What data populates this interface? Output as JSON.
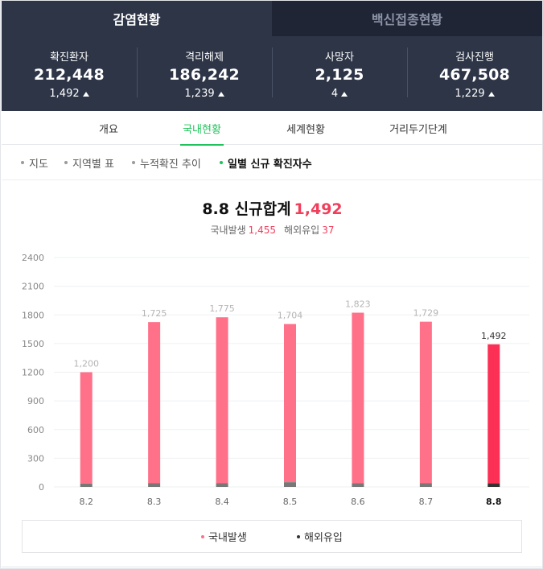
{
  "top_tabs": [
    {
      "label": "감염현황",
      "active": true
    },
    {
      "label": "백신접종현황",
      "active": false
    }
  ],
  "stats": [
    {
      "label": "확진환자",
      "value": "212,448",
      "delta": "1,492"
    },
    {
      "label": "격리해제",
      "value": "186,242",
      "delta": "1,239"
    },
    {
      "label": "사망자",
      "value": "2,125",
      "delta": "4"
    },
    {
      "label": "검사진행",
      "value": "467,508",
      "delta": "1,229"
    }
  ],
  "subnav": [
    {
      "label": "개요"
    },
    {
      "label": "국내현황",
      "active": true
    },
    {
      "label": "세계현황"
    },
    {
      "label": "거리두기단계"
    }
  ],
  "filters": [
    {
      "label": "지도"
    },
    {
      "label": "지역별 표"
    },
    {
      "label": "누적확진 추이"
    },
    {
      "label": "일별 신규 확진자수",
      "active": true
    }
  ],
  "summary": {
    "date": "8.8",
    "title_text": "신규합계",
    "total": "1,492",
    "domestic_label": "국내발생",
    "domestic_value": "1,455",
    "overseas_label": "해외유입",
    "overseas_value": "37"
  },
  "colors": {
    "domestic": "#ff7089",
    "domestic_current": "#fc3054",
    "overseas": "#777777",
    "overseas_current": "#333333",
    "accent_green": "#1ec35a",
    "header_bg": "#2e3547"
  },
  "chart_data": {
    "type": "bar",
    "stacked": true,
    "categories": [
      "8.2",
      "8.3",
      "8.4",
      "8.5",
      "8.6",
      "8.7",
      "8.8"
    ],
    "series": [
      {
        "name": "국내발생",
        "values": [
          1165,
          1687,
          1737,
          1655,
          1784,
          1691,
          1455
        ]
      },
      {
        "name": "해외유입",
        "values": [
          35,
          38,
          38,
          49,
          39,
          38,
          37
        ]
      }
    ],
    "totals": [
      "1,200",
      "1,725",
      "1,775",
      "1,704",
      "1,823",
      "1,729",
      "1,492"
    ],
    "total_values": [
      1200,
      1725,
      1775,
      1704,
      1823,
      1729,
      1492
    ],
    "yticks": [
      "2400",
      "2100",
      "1800",
      "1500",
      "1200",
      "900",
      "600",
      "300",
      "0"
    ],
    "ylim": [
      0,
      2400
    ],
    "grid": true,
    "legend_position": "bottom",
    "highlight_index": 6
  }
}
